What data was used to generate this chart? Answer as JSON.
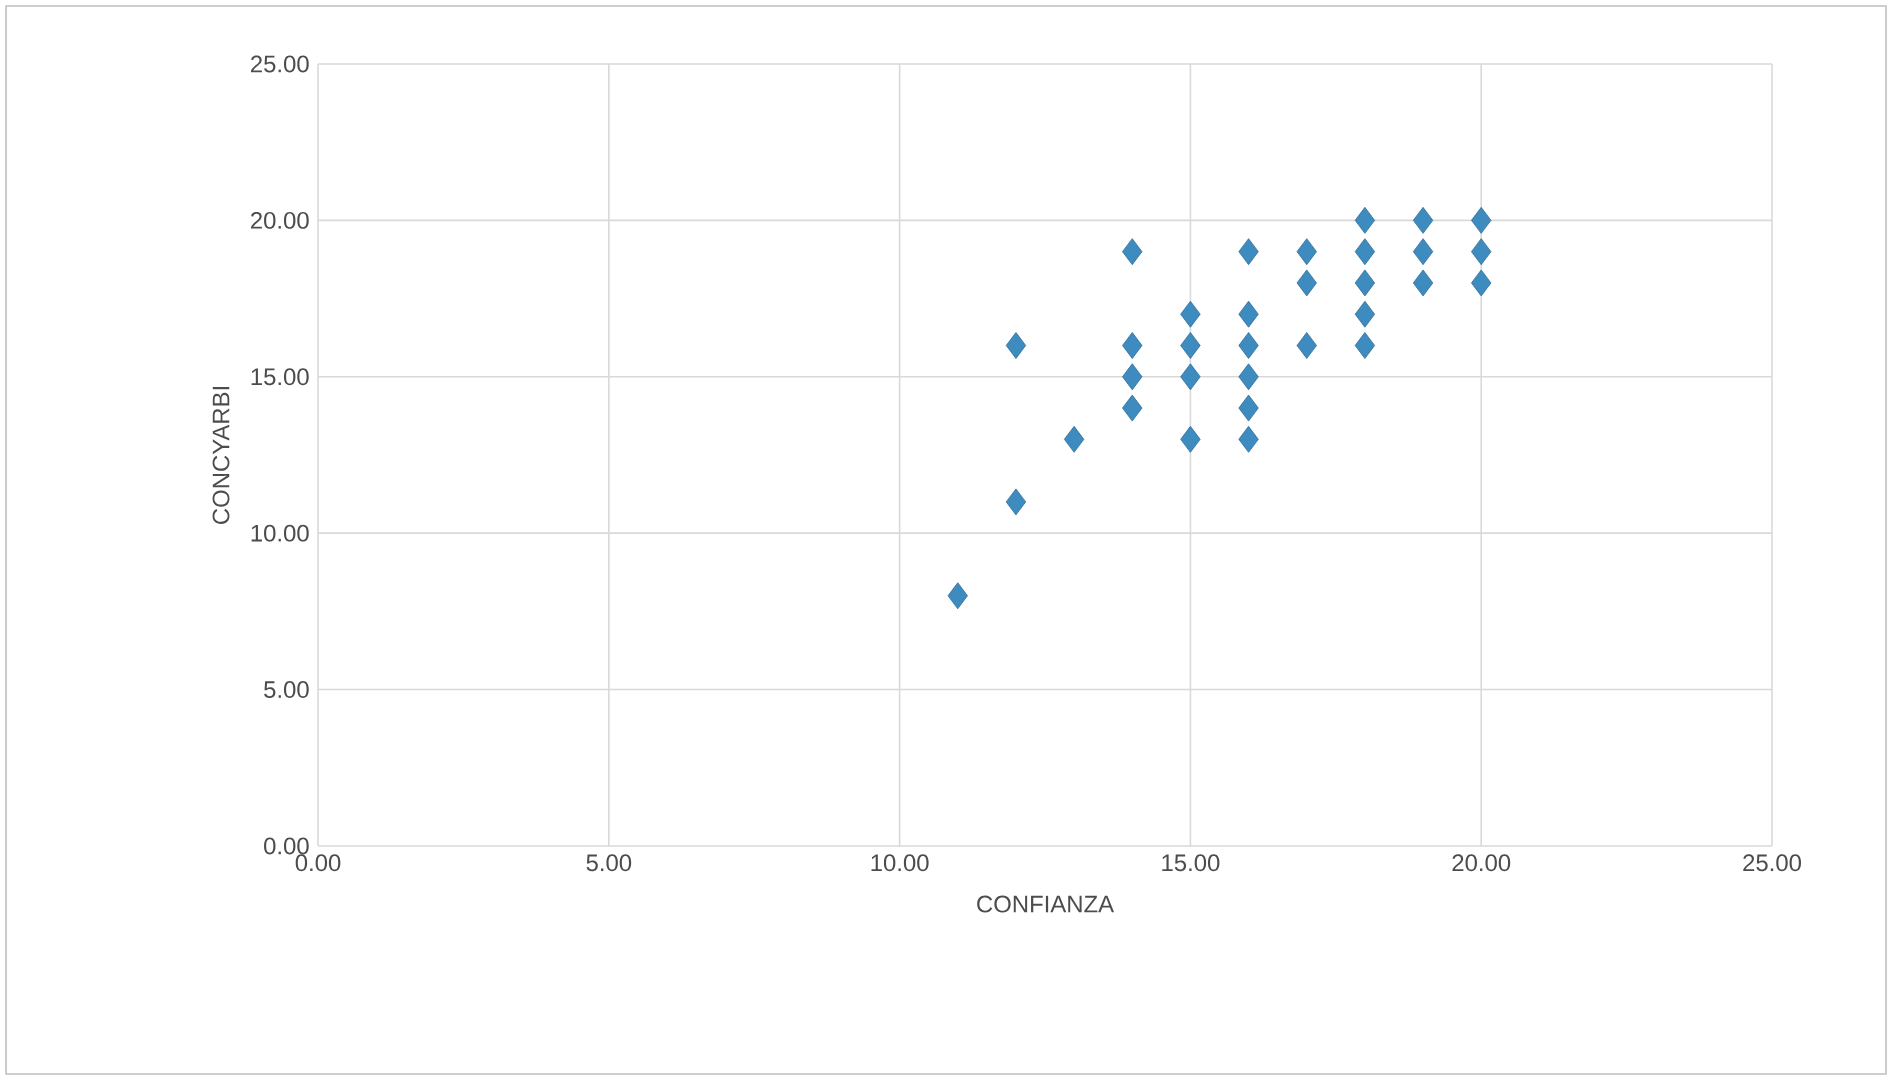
{
  "chart_data": {
    "type": "scatter",
    "xlabel": "CONFIANZA",
    "ylabel": "CONCYARBI",
    "marker": "diamond",
    "grid": true,
    "xlim": [
      0,
      25
    ],
    "ylim": [
      0,
      25
    ],
    "xticks": [
      {
        "value": 0,
        "label": "0.00"
      },
      {
        "value": 5,
        "label": "5.00"
      },
      {
        "value": 10,
        "label": "10.00"
      },
      {
        "value": 15,
        "label": "15.00"
      },
      {
        "value": 20,
        "label": "20.00"
      },
      {
        "value": 25,
        "label": "25.00"
      }
    ],
    "yticks": [
      {
        "value": 0,
        "label": "0.00"
      },
      {
        "value": 5,
        "label": "5.00"
      },
      {
        "value": 10,
        "label": "10.00"
      },
      {
        "value": 15,
        "label": "15.00"
      },
      {
        "value": 20,
        "label": "20.00"
      },
      {
        "value": 25,
        "label": "25.00"
      }
    ],
    "series": [
      {
        "color": "#3d8bbf",
        "x": [
          11,
          12,
          12,
          13,
          14,
          14,
          14,
          14,
          15,
          15,
          15,
          15,
          16,
          16,
          16,
          16,
          16,
          16,
          17,
          17,
          17,
          18,
          18,
          18,
          18,
          18,
          19,
          19,
          19,
          20,
          20,
          20
        ],
        "values": [
          8,
          16,
          11,
          13,
          19,
          16,
          15,
          14,
          17,
          16,
          15,
          13,
          19,
          17,
          16,
          15,
          14,
          13,
          19,
          18,
          16,
          20,
          19,
          18,
          17,
          16,
          20,
          19,
          18,
          20,
          19,
          18
        ]
      }
    ]
  }
}
